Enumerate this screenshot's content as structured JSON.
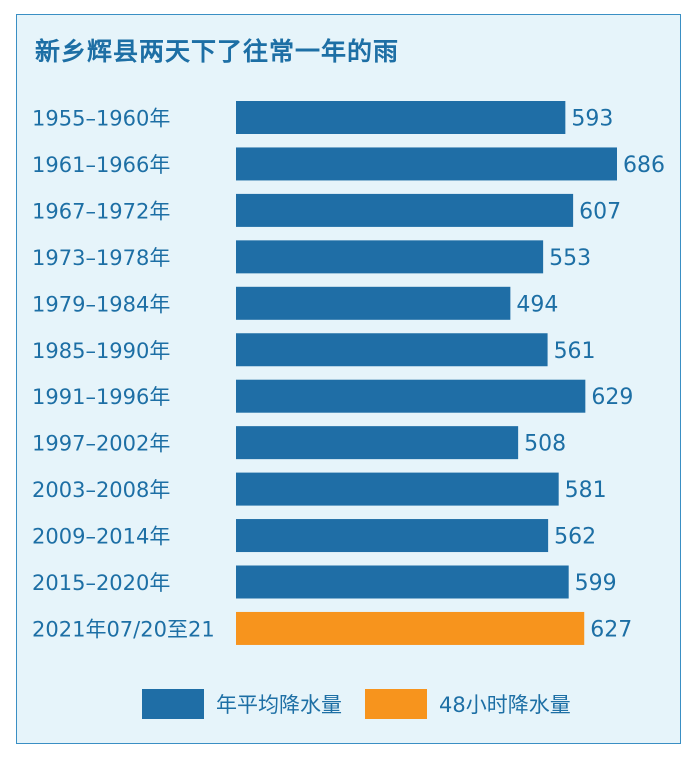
{
  "title": "新乡辉县两天下了往常一年的雨",
  "colors": {
    "annual": "#1f6ea6",
    "hours48": "#f7941d",
    "label": "#1d6fa5"
  },
  "legend": [
    {
      "label": "年平均降水量",
      "color": "#1f6ea6"
    },
    {
      "label": "48小时降水量",
      "color": "#f7941d"
    }
  ],
  "chart_data": {
    "type": "bar",
    "orientation": "horizontal",
    "categories": [
      "1955–1960年",
      "1961–1966年",
      "1967–1972年",
      "1973–1978年",
      "1979–1984年",
      "1985–1990年",
      "1991–1996年",
      "1997–2002年",
      "2003–2008年",
      "2009–2014年",
      "2015–2020年",
      "2021年07/20至21"
    ],
    "values": [
      593,
      686,
      607,
      553,
      494,
      561,
      629,
      508,
      581,
      562,
      599,
      627
    ],
    "series_of_bar": [
      "年平均降水量",
      "年平均降水量",
      "年平均降水量",
      "年平均降水量",
      "年平均降水量",
      "年平均降水量",
      "年平均降水量",
      "年平均降水量",
      "年平均降水量",
      "年平均降水量",
      "年平均降水量",
      "48小时降水量"
    ],
    "xlim": [
      0,
      686
    ],
    "grid": false,
    "legend_position": "bottom"
  }
}
